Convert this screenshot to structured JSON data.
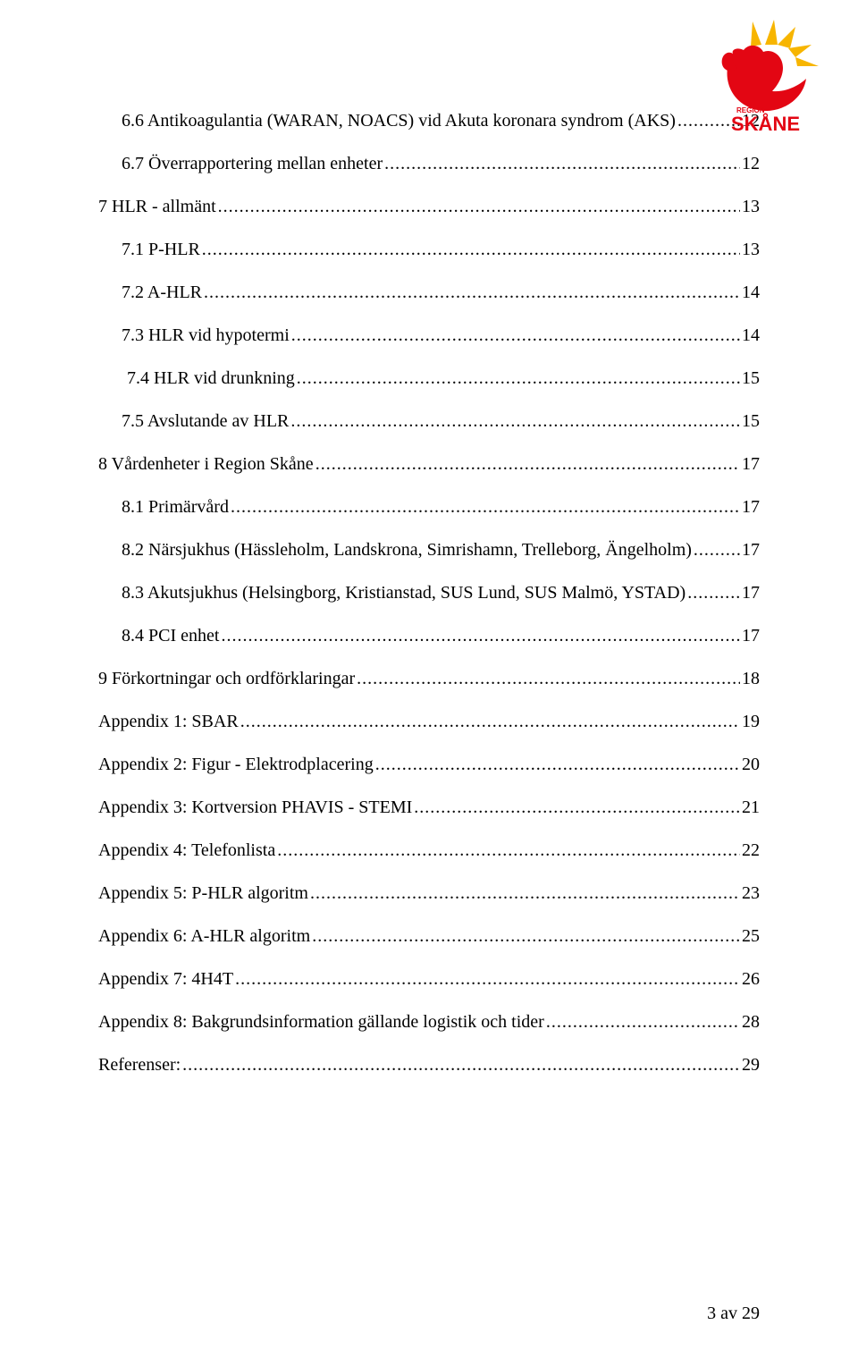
{
  "logo": {
    "top_text": "REGION",
    "bottom_text": "SKÅNE",
    "red": "#e30613",
    "yellow": "#f7b500",
    "text_color": "#e30613"
  },
  "toc": [
    {
      "level": 1,
      "label": "6.6 Antikoagulantia (WARAN, NOACS) vid Akuta koronara syndrom (AKS)",
      "page": "12"
    },
    {
      "level": 1,
      "label": "6.7 Överrapportering mellan enheter",
      "page": "12"
    },
    {
      "level": 0,
      "label": "7 HLR - allmänt",
      "page": "13"
    },
    {
      "level": 1,
      "label": "7.1 P-HLR",
      "page": "13"
    },
    {
      "level": 1,
      "label": "7.2 A-HLR",
      "page": "14"
    },
    {
      "level": 1,
      "label": "7.3 HLR vid hypotermi",
      "page": "14"
    },
    {
      "level": 2,
      "label": "7.4 HLR vid drunkning",
      "page": "15"
    },
    {
      "level": 1,
      "label": "7.5 Avslutande av HLR",
      "page": "15"
    },
    {
      "level": 0,
      "label": "8 Vårdenheter i Region Skåne",
      "page": "17"
    },
    {
      "level": 1,
      "label": "8.1 Primärvård",
      "page": "17"
    },
    {
      "level": 1,
      "label": "8.2 Närsjukhus (Hässleholm, Landskrona, Simrishamn, Trelleborg, Ängelholm)",
      "page": "17"
    },
    {
      "level": 1,
      "label": "8.3 Akutsjukhus (Helsingborg, Kristianstad, SUS Lund, SUS Malmö, YSTAD)",
      "page": "17"
    },
    {
      "level": 1,
      "label": "8.4 PCI enhet",
      "page": "17"
    },
    {
      "level": 0,
      "label": "9 Förkortningar och ordförklaringar",
      "page": "18"
    },
    {
      "level": 0,
      "label": "Appendix 1: SBAR",
      "page": "19"
    },
    {
      "level": 0,
      "label": "Appendix 2: Figur - Elektrodplacering",
      "page": "20"
    },
    {
      "level": 0,
      "label": "Appendix 3: Kortversion PHAVIS - STEMI",
      "page": "21"
    },
    {
      "level": 0,
      "label": "Appendix 4: Telefonlista",
      "page": "22"
    },
    {
      "level": 0,
      "label": "Appendix 5: P-HLR algoritm",
      "page": "23"
    },
    {
      "level": 0,
      "label": "Appendix 6: A-HLR algoritm",
      "page": "25"
    },
    {
      "level": 0,
      "label": "Appendix 7: 4H4T",
      "page": "26"
    },
    {
      "level": 0,
      "label": "Appendix 8: Bakgrundsinformation gällande logistik och tider",
      "page": "28"
    },
    {
      "level": 0,
      "label": "Referenser:",
      "page": "29"
    }
  ],
  "footer": "3 av 29",
  "colors": {
    "background": "#ffffff",
    "text": "#000000"
  }
}
